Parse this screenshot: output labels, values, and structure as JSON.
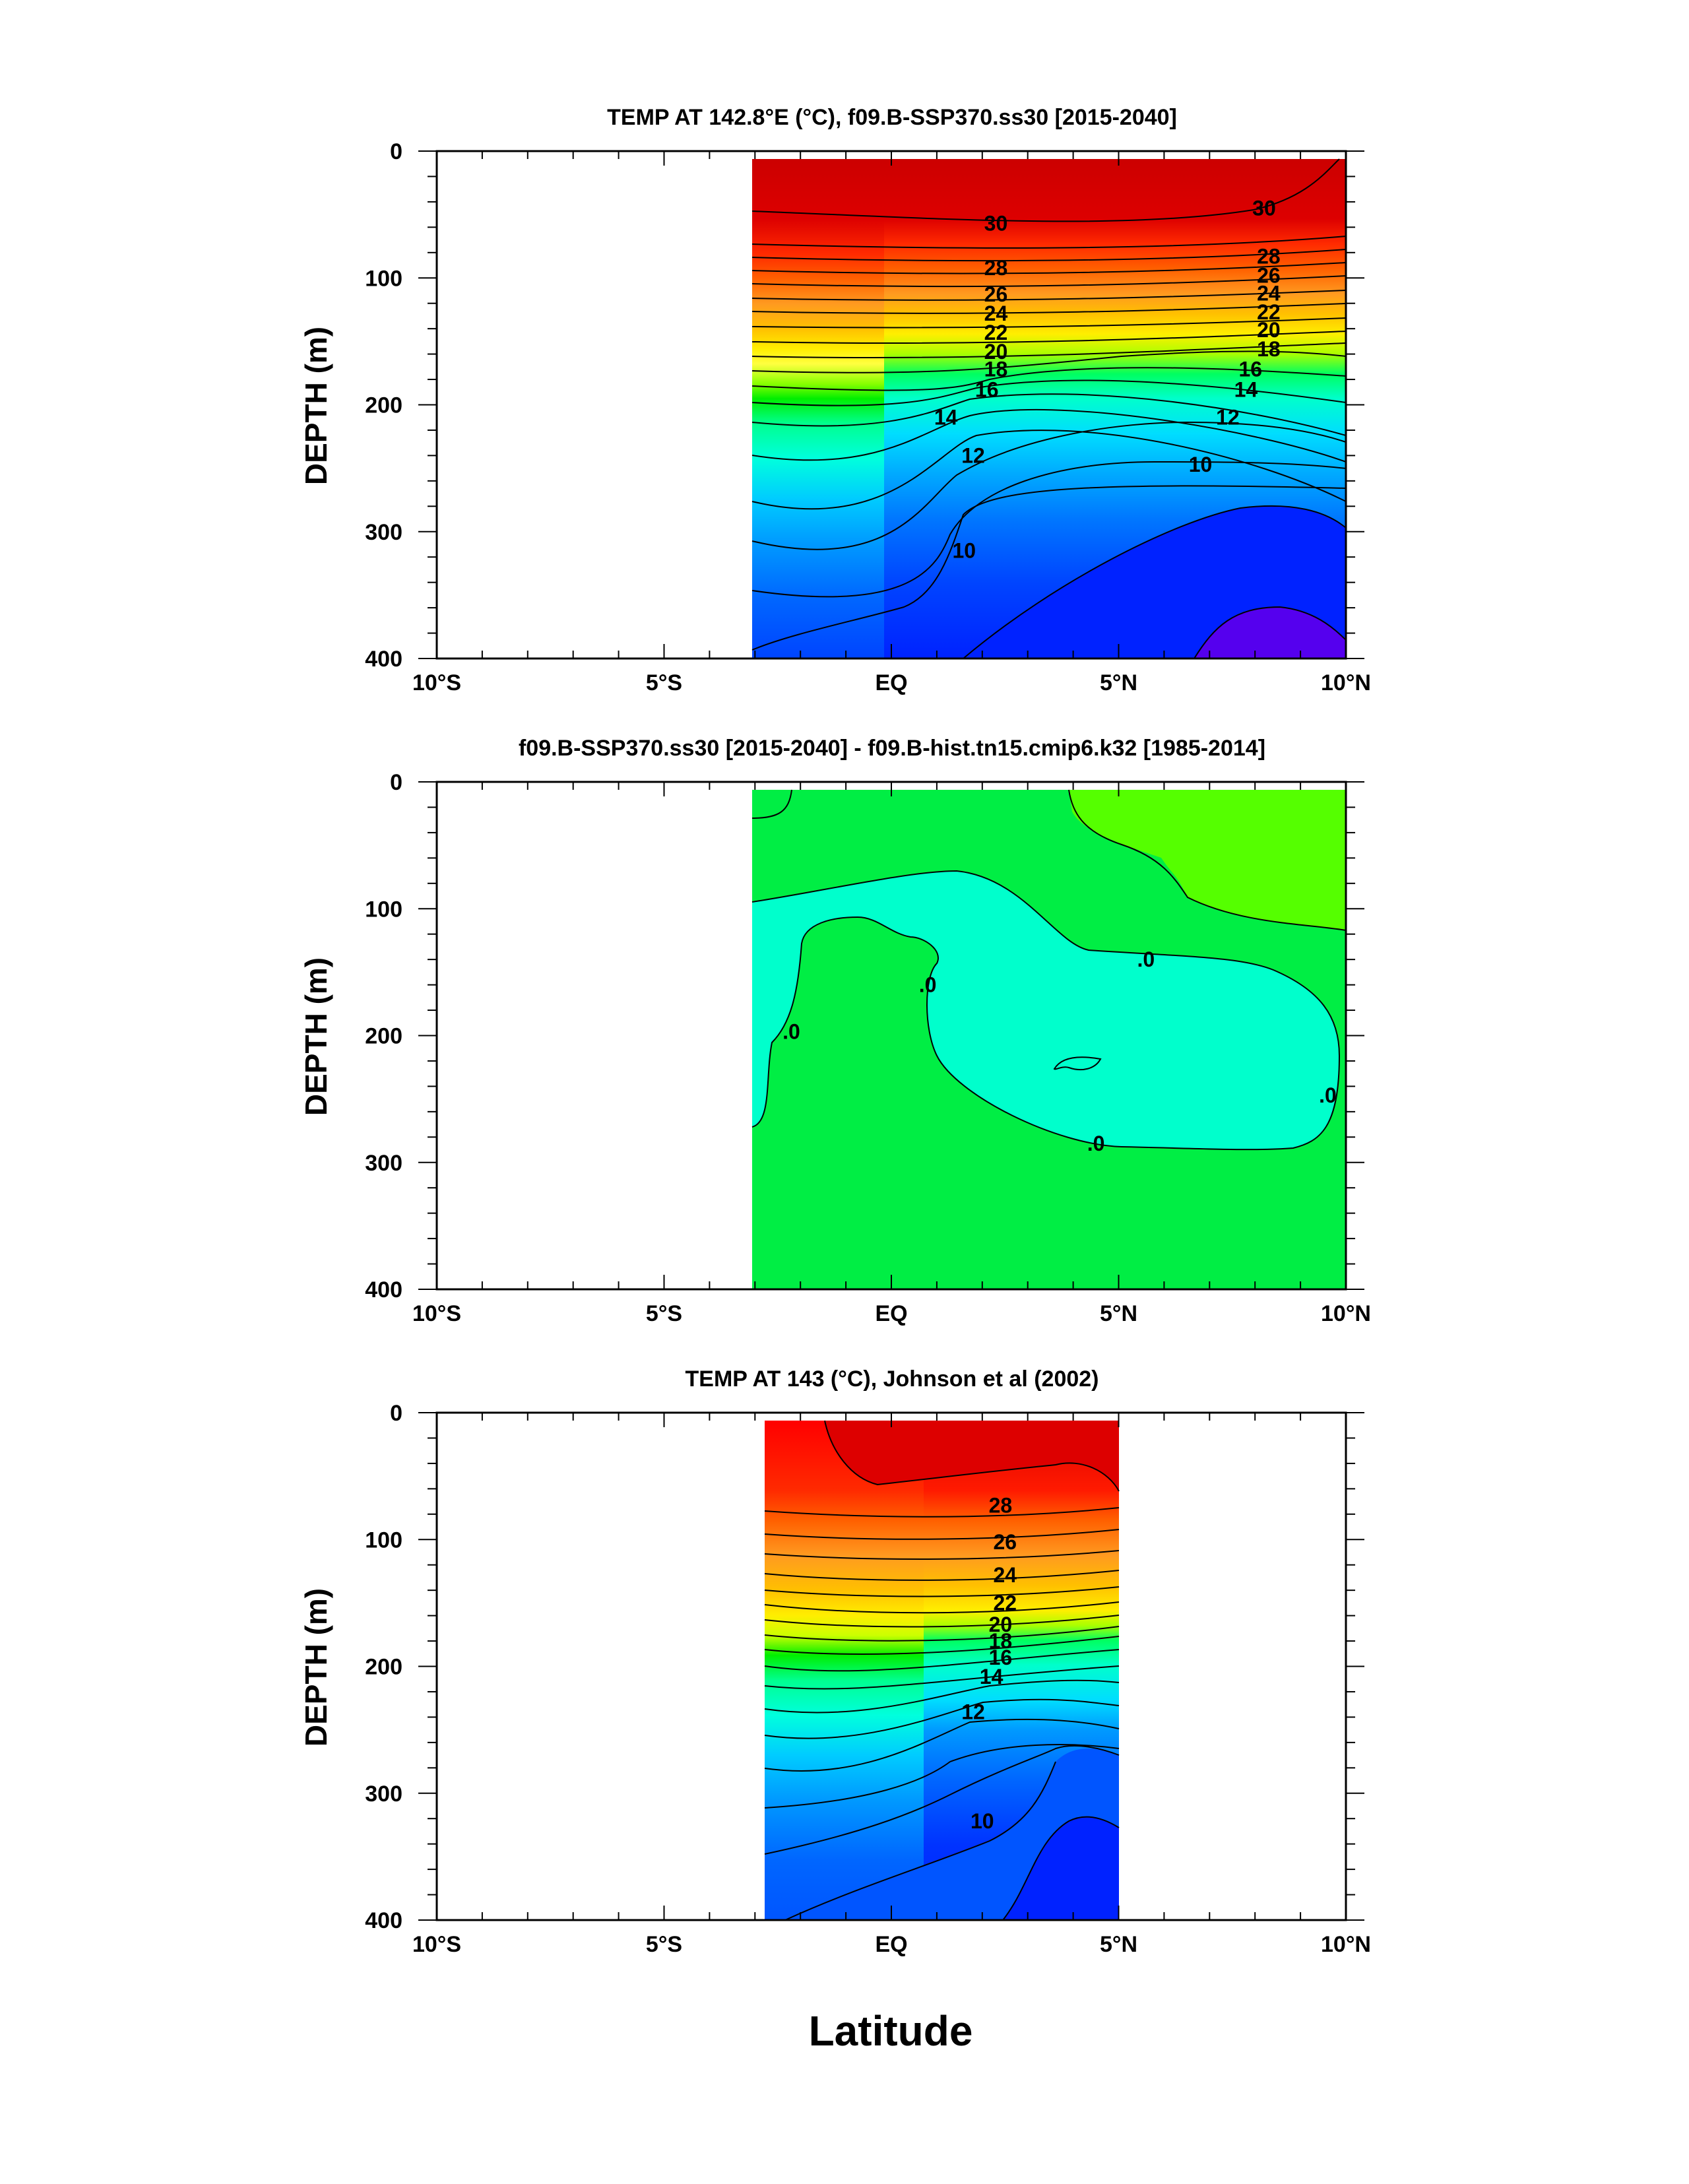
{
  "xlabel": "Latitude",
  "chart_data": [
    {
      "type": "contour",
      "title": "TEMP AT 142.8°E (°C), f09.B-SSP370.ss30 [2015-2040]",
      "ylabel": "DEPTH (m)",
      "xlim": [
        -10,
        10
      ],
      "ylim": [
        400,
        0
      ],
      "x_ticks": [
        "10°S",
        "5°S",
        "EQ",
        "5°N",
        "10°N"
      ],
      "y_ticks": [
        "0",
        "100",
        "200",
        "300",
        "400"
      ],
      "data_extent": {
        "lat": [
          -3,
          10
        ],
        "depth": [
          5,
          400
        ]
      },
      "levels_labeled": [
        "30",
        "28",
        "26",
        "24",
        "22",
        "20",
        "18",
        "16",
        "14",
        "12",
        "10"
      ],
      "contour_labels": [
        {
          "text": "30",
          "lat": 2.3,
          "depth": 57
        },
        {
          "text": "30",
          "lat": 8.2,
          "depth": 45
        },
        {
          "text": "28",
          "lat": 2.3,
          "depth": 92
        },
        {
          "text": "26",
          "lat": 2.3,
          "depth": 113
        },
        {
          "text": "24",
          "lat": 2.3,
          "depth": 128
        },
        {
          "text": "22",
          "lat": 2.3,
          "depth": 143
        },
        {
          "text": "20",
          "lat": 2.3,
          "depth": 158
        },
        {
          "text": "18",
          "lat": 2.3,
          "depth": 172
        },
        {
          "text": "28",
          "lat": 8.3,
          "depth": 83
        },
        {
          "text": "26",
          "lat": 8.3,
          "depth": 98
        },
        {
          "text": "24",
          "lat": 8.3,
          "depth": 112
        },
        {
          "text": "22",
          "lat": 8.3,
          "depth": 127
        },
        {
          "text": "20",
          "lat": 8.3,
          "depth": 141
        },
        {
          "text": "18",
          "lat": 8.3,
          "depth": 156
        },
        {
          "text": "16",
          "lat": 2.1,
          "depth": 188
        },
        {
          "text": "16",
          "lat": 7.9,
          "depth": 172
        },
        {
          "text": "14",
          "lat": 1.2,
          "depth": 210
        },
        {
          "text": "14",
          "lat": 7.8,
          "depth": 188
        },
        {
          "text": "12",
          "lat": 7.4,
          "depth": 210
        },
        {
          "text": "12",
          "lat": 1.8,
          "depth": 240
        },
        {
          "text": "10",
          "lat": 6.8,
          "depth": 247
        },
        {
          "text": "10",
          "lat": 1.6,
          "depth": 315
        }
      ]
    },
    {
      "type": "contour",
      "title": "f09.B-SSP370.ss30 [2015-2040] - f09.B-hist.tn15.cmip6.k32 [1985-2014]",
      "ylabel": "DEPTH (m)",
      "xlim": [
        -10,
        10
      ],
      "ylim": [
        400,
        0
      ],
      "x_ticks": [
        "10°S",
        "5°S",
        "EQ",
        "5°N",
        "10°N"
      ],
      "y_ticks": [
        "0",
        "100",
        "200",
        "300",
        "400"
      ],
      "data_extent": {
        "lat": [
          -3,
          10
        ],
        "depth": [
          5,
          400
        ]
      },
      "contour_labels": [
        {
          "text": ".0",
          "lat": -2.2,
          "depth": 197
        },
        {
          "text": ".0",
          "lat": 0.8,
          "depth": 160
        },
        {
          "text": ".0",
          "lat": 5.6,
          "depth": 140
        },
        {
          "text": ".0",
          "lat": 9.6,
          "depth": 247
        },
        {
          "text": ".0",
          "lat": 4.5,
          "depth": 285
        }
      ]
    },
    {
      "type": "contour",
      "title": "TEMP AT 143 (°C), Johnson et al (2002)",
      "ylabel": "DEPTH (m)",
      "xlim": [
        -10,
        10
      ],
      "ylim": [
        400,
        0
      ],
      "x_ticks": [
        "10°S",
        "5°S",
        "EQ",
        "5°N",
        "10°N"
      ],
      "y_ticks": [
        "0",
        "100",
        "200",
        "300",
        "400"
      ],
      "data_extent": {
        "lat": [
          -2.8,
          5
        ],
        "depth": [
          5,
          400
        ]
      },
      "contour_labels": [
        {
          "text": "28",
          "lat": 2.4,
          "depth": 73
        },
        {
          "text": "26",
          "lat": 2.5,
          "depth": 102
        },
        {
          "text": "24",
          "lat": 2.5,
          "depth": 128
        },
        {
          "text": "22",
          "lat": 2.5,
          "depth": 150
        },
        {
          "text": "20",
          "lat": 2.4,
          "depth": 167
        },
        {
          "text": "18",
          "lat": 2.4,
          "depth": 180
        },
        {
          "text": "16",
          "lat": 2.4,
          "depth": 193
        },
        {
          "text": "14",
          "lat": 2.2,
          "depth": 208
        },
        {
          "text": "12",
          "lat": 1.8,
          "depth": 236
        },
        {
          "text": "10",
          "lat": 2.0,
          "depth": 322
        }
      ]
    }
  ]
}
